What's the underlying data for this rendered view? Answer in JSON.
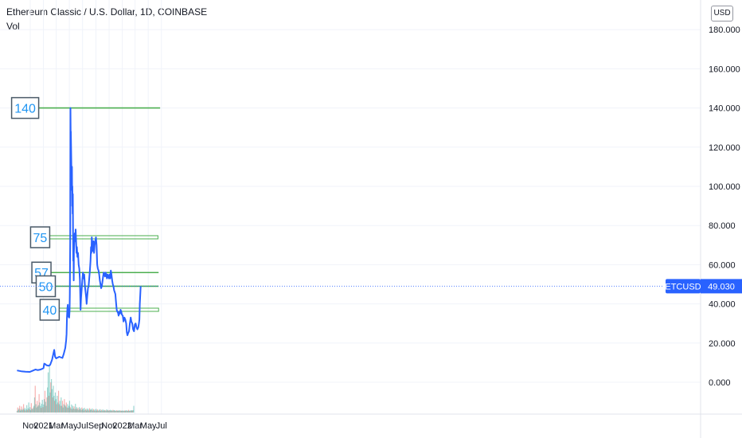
{
  "header": {
    "title": "Ethereum Classic / U.S. Dollar, 1D, COINBASE",
    "volume_label": "Vol",
    "currency_button": "USD"
  },
  "colors": {
    "price_line": "#2962ff",
    "level_line": "#4caf50",
    "label_text": "#2196f3",
    "label_border": "#4a5a68",
    "grid": "#f0f3fa",
    "axis_text": "#131722",
    "price_badge": "#2962ff",
    "volume_up": "#26a69a",
    "volume_down": "#ef5350"
  },
  "chart_data": {
    "type": "line",
    "ylim": [
      -15,
      185
    ],
    "y_ticks": [
      "180.000",
      "160.000",
      "140.000",
      "120.000",
      "100.000",
      "80.000",
      "60.000",
      "40.000",
      "20.000",
      "0.000"
    ],
    "x_ticks": [
      "Nov",
      "2021",
      "Mar",
      "May",
      "Jul",
      "Sep",
      "Nov",
      "2022",
      "Mar",
      "May",
      "Jul"
    ],
    "x_tick_dates": [
      "2020-11-01",
      "2021-01-01",
      "2021-03-01",
      "2021-05-01",
      "2021-07-01",
      "2021-09-01",
      "2021-11-01",
      "2022-01-01",
      "2022-03-01",
      "2022-05-01",
      "2022-07-01"
    ],
    "x_range": [
      "2020-09-01",
      "2022-08-01"
    ],
    "series": [
      {
        "name": "ETCUSD",
        "points": [
          [
            "2020-09-01",
            6.0
          ],
          [
            "2020-09-20",
            5.6
          ],
          [
            "2020-10-10",
            5.4
          ],
          [
            "2020-10-30",
            5.3
          ],
          [
            "2020-11-15",
            6.0
          ],
          [
            "2020-11-25",
            6.5
          ],
          [
            "2020-12-05",
            6.2
          ],
          [
            "2020-12-15",
            6.4
          ],
          [
            "2020-12-25",
            6.8
          ],
          [
            "2021-01-01",
            7.2
          ],
          [
            "2021-01-05",
            9.5
          ],
          [
            "2021-01-10",
            9.2
          ],
          [
            "2021-01-15",
            8.7
          ],
          [
            "2021-01-25",
            8.4
          ],
          [
            "2021-02-01",
            8.9
          ],
          [
            "2021-02-10",
            11.5
          ],
          [
            "2021-02-20",
            16.5
          ],
          [
            "2021-02-24",
            13.0
          ],
          [
            "2021-03-01",
            12.2
          ],
          [
            "2021-03-15",
            13.0
          ],
          [
            "2021-03-30",
            12.4
          ],
          [
            "2021-04-05",
            14.5
          ],
          [
            "2021-04-12",
            17.5
          ],
          [
            "2021-04-16",
            21.5
          ],
          [
            "2021-04-18",
            24.5
          ],
          [
            "2021-04-20",
            33.0
          ],
          [
            "2021-04-22",
            38.0
          ],
          [
            "2021-04-24",
            39.5
          ],
          [
            "2021-04-26",
            33.5
          ],
          [
            "2021-04-28",
            36.0
          ],
          [
            "2021-04-30",
            33.0
          ],
          [
            "2021-05-02",
            36.5
          ],
          [
            "2021-05-03",
            45.0
          ],
          [
            "2021-05-04",
            56.0
          ],
          [
            "2021-05-05",
            72.0
          ],
          [
            "2021-05-06",
            140.0
          ],
          [
            "2021-05-07",
            125.0
          ],
          [
            "2021-05-08",
            128.0
          ],
          [
            "2021-05-09",
            120.0
          ],
          [
            "2021-05-10",
            112.0
          ],
          [
            "2021-05-11",
            105.0
          ],
          [
            "2021-05-12",
            98.0
          ],
          [
            "2021-05-13",
            110.0
          ],
          [
            "2021-05-14",
            90.0
          ],
          [
            "2021-05-15",
            100.0
          ],
          [
            "2021-05-16",
            86.0
          ],
          [
            "2021-05-17",
            96.0
          ],
          [
            "2021-05-18",
            80.0
          ],
          [
            "2021-05-19",
            62.0
          ],
          [
            "2021-05-20",
            70.0
          ],
          [
            "2021-05-21",
            52.0
          ],
          [
            "2021-05-22",
            66.0
          ],
          [
            "2021-05-24",
            72.0
          ],
          [
            "2021-05-26",
            76.0
          ],
          [
            "2021-05-28",
            72.0
          ],
          [
            "2021-05-30",
            78.0
          ],
          [
            "2021-06-01",
            73.0
          ],
          [
            "2021-06-03",
            66.0
          ],
          [
            "2021-06-05",
            69.0
          ],
          [
            "2021-06-07",
            64.0
          ],
          [
            "2021-06-10",
            66.0
          ],
          [
            "2021-06-13",
            60.0
          ],
          [
            "2021-06-16",
            58.0
          ],
          [
            "2021-06-19",
            52.0
          ],
          [
            "2021-06-22",
            37.0
          ],
          [
            "2021-06-24",
            43.0
          ],
          [
            "2021-06-26",
            46.0
          ],
          [
            "2021-06-28",
            49.0
          ],
          [
            "2021-06-30",
            52.0
          ],
          [
            "2021-07-03",
            56.0
          ],
          [
            "2021-07-06",
            53.0
          ],
          [
            "2021-07-09",
            55.0
          ],
          [
            "2021-07-12",
            49.0
          ],
          [
            "2021-07-15",
            46.0
          ],
          [
            "2021-07-18",
            43.0
          ],
          [
            "2021-07-20",
            40.0
          ],
          [
            "2021-07-23",
            44.0
          ],
          [
            "2021-07-26",
            48.0
          ],
          [
            "2021-07-29",
            49.0
          ],
          [
            "2021-08-01",
            53.0
          ],
          [
            "2021-08-04",
            57.0
          ],
          [
            "2021-08-07",
            62.0
          ],
          [
            "2021-08-09",
            69.0
          ],
          [
            "2021-08-11",
            66.0
          ],
          [
            "2021-08-13",
            74.0
          ],
          [
            "2021-08-15",
            70.0
          ],
          [
            "2021-08-17",
            67.0
          ],
          [
            "2021-08-19",
            70.0
          ],
          [
            "2021-08-21",
            72.0
          ],
          [
            "2021-08-23",
            66.0
          ],
          [
            "2021-08-26",
            70.0
          ],
          [
            "2021-08-29",
            72.0
          ],
          [
            "2021-09-01",
            74.0
          ],
          [
            "2021-09-04",
            70.0
          ],
          [
            "2021-09-07",
            60.0
          ],
          [
            "2021-09-10",
            58.0
          ],
          [
            "2021-09-13",
            57.0
          ],
          [
            "2021-09-16",
            55.0
          ],
          [
            "2021-09-19",
            52.0
          ],
          [
            "2021-09-22",
            50.0
          ],
          [
            "2021-09-25",
            48.0
          ],
          [
            "2021-09-28",
            49.0
          ],
          [
            "2021-10-01",
            51.0
          ],
          [
            "2021-10-04",
            54.0
          ],
          [
            "2021-10-07",
            56.0
          ],
          [
            "2021-10-10",
            55.0
          ],
          [
            "2021-10-13",
            54.0
          ],
          [
            "2021-10-16",
            56.0
          ],
          [
            "2021-10-19",
            55.0
          ],
          [
            "2021-10-22",
            53.0
          ],
          [
            "2021-10-25",
            55.0
          ],
          [
            "2021-10-28",
            54.0
          ],
          [
            "2021-10-31",
            53.0
          ],
          [
            "2021-11-03",
            55.0
          ],
          [
            "2021-11-06",
            53.0
          ],
          [
            "2021-11-09",
            57.0
          ],
          [
            "2021-11-12",
            55.0
          ],
          [
            "2021-11-15",
            52.0
          ],
          [
            "2021-11-18",
            50.0
          ],
          [
            "2021-11-21",
            49.0
          ],
          [
            "2021-11-24",
            47.0
          ],
          [
            "2021-11-27",
            46.0
          ],
          [
            "2021-11-30",
            45.0
          ],
          [
            "2021-12-03",
            41.0
          ],
          [
            "2021-12-06",
            37.0
          ],
          [
            "2021-12-09",
            36.0
          ],
          [
            "2021-12-12",
            35.5
          ],
          [
            "2021-12-15",
            34.0
          ],
          [
            "2021-12-18",
            36.0
          ],
          [
            "2021-12-21",
            35.0
          ],
          [
            "2021-12-24",
            37.0
          ],
          [
            "2021-12-27",
            36.0
          ],
          [
            "2021-12-30",
            34.5
          ],
          [
            "2022-01-03",
            34.0
          ],
          [
            "2022-01-07",
            31.0
          ],
          [
            "2022-01-11",
            33.0
          ],
          [
            "2022-01-15",
            32.0
          ],
          [
            "2022-01-19",
            30.0
          ],
          [
            "2022-01-22",
            25.5
          ],
          [
            "2022-01-25",
            24.0
          ],
          [
            "2022-01-28",
            25.0
          ],
          [
            "2022-02-01",
            26.0
          ],
          [
            "2022-02-05",
            30.0
          ],
          [
            "2022-02-09",
            33.0
          ],
          [
            "2022-02-12",
            31.0
          ],
          [
            "2022-02-16",
            30.0
          ],
          [
            "2022-02-20",
            27.0
          ],
          [
            "2022-02-24",
            26.0
          ],
          [
            "2022-02-28",
            29.5
          ],
          [
            "2022-03-04",
            30.0
          ],
          [
            "2022-03-08",
            28.0
          ],
          [
            "2022-03-12",
            27.0
          ],
          [
            "2022-03-16",
            28.0
          ],
          [
            "2022-03-19",
            30.0
          ],
          [
            "2022-03-21",
            32.0
          ],
          [
            "2022-03-23",
            40.0
          ],
          [
            "2022-03-25",
            44.0
          ],
          [
            "2022-03-27",
            49.0
          ]
        ]
      }
    ],
    "horizontal_levels": [
      {
        "label": "140",
        "value": 140,
        "start": "2020-12-10",
        "end": "2022-06-25",
        "double": false
      },
      {
        "label": "75",
        "value": 74,
        "start": "2021-01-30",
        "end": "2022-06-15",
        "double": true
      },
      {
        "label": "57",
        "value": 56,
        "start": "2021-02-05",
        "end": "2022-06-18",
        "double": false
      },
      {
        "label": "50",
        "value": 49,
        "start": "2021-02-25",
        "end": "2022-06-18",
        "double": false
      },
      {
        "label": "40",
        "value": 37,
        "start": "2021-03-15",
        "end": "2022-06-18",
        "double": true
      }
    ],
    "volume": {
      "start": "2020-09-01",
      "end": "2022-03-27",
      "step_days": 3,
      "values": [
        0.5,
        1.5,
        0.8,
        1.2,
        2.0,
        0.6,
        1.0,
        1.8,
        0.7,
        1.1,
        2.5,
        0.9,
        1.4,
        0.6,
        1.0,
        2.2,
        0.8,
        1.3,
        3.0,
        1.0,
        1.6,
        0.7,
        2.8,
        1.2,
        1.0,
        1.5,
        2.0,
        4.5,
        8.0,
        2.5,
        1.5,
        3.5,
        1.8,
        2.2,
        5.5,
        3.0,
        2.0,
        1.4,
        2.6,
        3.8,
        1.6,
        2.4,
        4.0,
        6.5,
        3.2,
        2.0,
        4.5,
        7.5,
        12.0,
        5.0,
        14.0,
        6.0,
        9.0,
        10.0,
        7.0,
        4.5,
        8.0,
        5.0,
        3.5,
        6.0,
        4.0,
        2.5,
        5.0,
        3.0,
        6.5,
        2.5,
        3.5,
        2.0,
        4.5,
        2.0,
        3.5,
        1.5,
        2.5,
        4.0,
        2.2,
        1.8,
        3.0,
        1.5,
        2.5,
        1.4,
        2.0,
        3.5,
        1.6,
        1.2,
        2.4,
        1.0,
        2.0,
        1.2,
        1.8,
        1.0,
        2.6,
        1.1,
        1.6,
        1.0,
        1.4,
        0.8,
        1.6,
        1.0,
        1.3,
        0.7,
        1.5,
        0.9,
        1.2,
        0.6,
        1.4,
        0.8,
        1.0,
        0.6,
        1.2,
        0.7,
        1.1,
        0.6,
        1.3,
        0.8,
        1.0,
        0.7,
        1.2,
        0.6,
        1.0,
        0.6,
        0.9,
        0.5,
        1.1,
        0.6,
        0.9,
        0.5,
        0.8,
        0.6,
        1.0,
        0.5,
        0.8,
        0.6,
        0.9,
        0.5,
        0.8,
        0.6,
        0.7,
        0.5,
        0.9,
        0.6,
        0.8,
        0.5,
        0.7,
        0.6,
        0.8,
        0.5,
        0.7,
        0.5,
        0.8,
        0.6,
        0.7,
        0.5,
        0.6,
        0.5,
        0.7,
        0.5,
        0.6,
        0.5,
        0.7,
        0.5,
        0.6,
        0.5,
        0.6,
        0.5,
        0.6,
        0.5,
        0.6,
        0.5,
        0.7,
        0.5,
        0.6,
        0.5,
        0.8,
        0.5,
        0.6,
        0.5,
        0.7,
        0.6,
        0.6,
        0.7,
        2.0
      ]
    },
    "last_price": {
      "symbol": "ETCUSD",
      "value": "49.030"
    }
  }
}
